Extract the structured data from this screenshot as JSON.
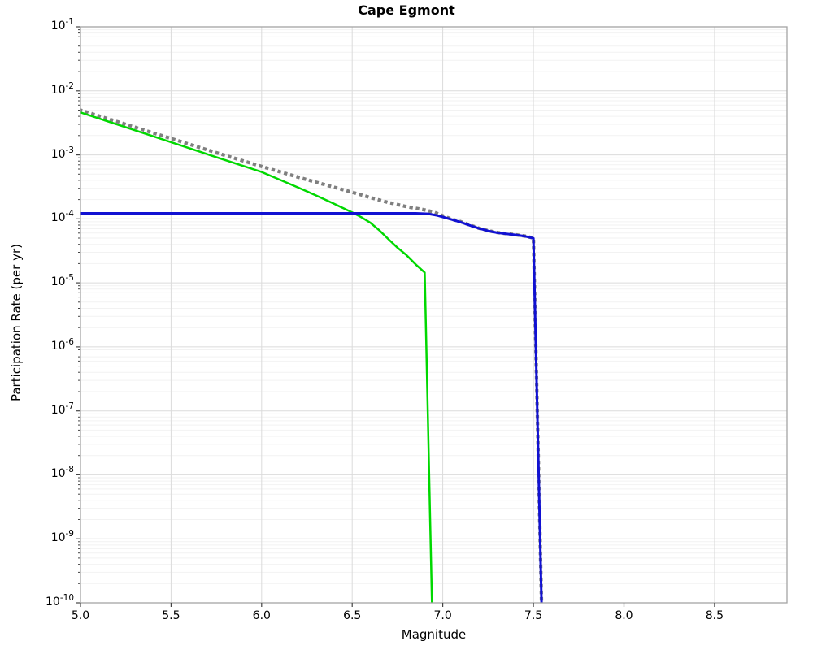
{
  "figure": {
    "background": "#ffffff"
  },
  "chart_data": {
    "type": "line",
    "title": "Cape Egmont",
    "xlabel": "Magnitude",
    "ylabel": "Participation Rate (per yr)",
    "x_range": [
      5.0,
      8.9
    ],
    "y_log_range_exponents": [
      -1,
      -10
    ],
    "x_tick_values": [
      5.0,
      5.5,
      6.0,
      6.5,
      7.0,
      7.5,
      8.0,
      8.5
    ],
    "x_tick_labels": [
      "5.0",
      "5.5",
      "6.0",
      "6.5",
      "7.0",
      "7.5",
      "8.0",
      "8.5"
    ],
    "y_tick_exponents": [
      -1,
      -2,
      -3,
      -4,
      -5,
      -6,
      -7,
      -8,
      -9,
      -10
    ],
    "grid": {
      "major_color": "#dbdbdb",
      "minor_color": "#f2f2f2",
      "frame_color": "#a3a3a3",
      "tick_color": "#444444",
      "grid_on": true,
      "minor_grid_on": true,
      "legend": "none"
    },
    "series": [
      {
        "name": "total-rate-dotted-gray",
        "color": "#7f7f7f",
        "style": "dotted",
        "points": [
          [
            5.0,
            0.005
          ],
          [
            5.25,
            0.003
          ],
          [
            5.5,
            0.0018
          ],
          [
            5.75,
            0.00108
          ],
          [
            6.0,
            0.00066
          ],
          [
            6.25,
            0.00041
          ],
          [
            6.5,
            0.00026
          ],
          [
            6.6,
            0.000215
          ],
          [
            6.7,
            0.00018
          ],
          [
            6.8,
            0.000155
          ],
          [
            6.9,
            0.000138
          ],
          [
            6.95,
            0.000128
          ],
          [
            7.0,
            0.000112
          ],
          [
            7.05,
            9.9e-05
          ],
          [
            7.1,
            9e-05
          ],
          [
            7.15,
            8e-05
          ],
          [
            7.2,
            7.15e-05
          ],
          [
            7.25,
            6.55e-05
          ],
          [
            7.3,
            6.12e-05
          ],
          [
            7.35,
            5.88e-05
          ],
          [
            7.4,
            5.66e-05
          ],
          [
            7.45,
            5.4e-05
          ],
          [
            7.5,
            5.02e-05
          ],
          [
            7.545,
            1e-10
          ]
        ]
      },
      {
        "name": "incremental-rate-solid-green",
        "color": "#00d800",
        "style": "solid",
        "points": [
          [
            5.0,
            0.0046
          ],
          [
            5.25,
            0.0027
          ],
          [
            5.5,
            0.00158
          ],
          [
            5.75,
            0.00092
          ],
          [
            6.0,
            0.00054
          ],
          [
            6.1,
            0.00041
          ],
          [
            6.2,
            0.00031
          ],
          [
            6.3,
            0.000232
          ],
          [
            6.4,
            0.000172
          ],
          [
            6.5,
            0.000126
          ],
          [
            6.55,
            0.000106
          ],
          [
            6.6,
            8.7e-05
          ],
          [
            6.65,
            6.6e-05
          ],
          [
            6.7,
            4.8e-05
          ],
          [
            6.75,
            3.55e-05
          ],
          [
            6.8,
            2.7e-05
          ],
          [
            6.85,
            1.95e-05
          ],
          [
            6.9,
            1.45e-05
          ],
          [
            6.94,
            1e-10
          ]
        ]
      },
      {
        "name": "characteristic-rate-solid-blue",
        "color": "#1111d2",
        "style": "solid",
        "points": [
          [
            5.0,
            0.000122
          ],
          [
            6.85,
            0.000122
          ],
          [
            6.92,
            0.00012
          ],
          [
            6.97,
            0.000113
          ],
          [
            7.0,
            0.000107
          ],
          [
            7.05,
            9.75e-05
          ],
          [
            7.1,
            8.85e-05
          ],
          [
            7.15,
            7.9e-05
          ],
          [
            7.2,
            7.1e-05
          ],
          [
            7.25,
            6.5e-05
          ],
          [
            7.3,
            6.08e-05
          ],
          [
            7.35,
            5.85e-05
          ],
          [
            7.4,
            5.63e-05
          ],
          [
            7.45,
            5.37e-05
          ],
          [
            7.5,
            4.98e-05
          ],
          [
            7.545,
            1e-10
          ]
        ]
      }
    ]
  }
}
